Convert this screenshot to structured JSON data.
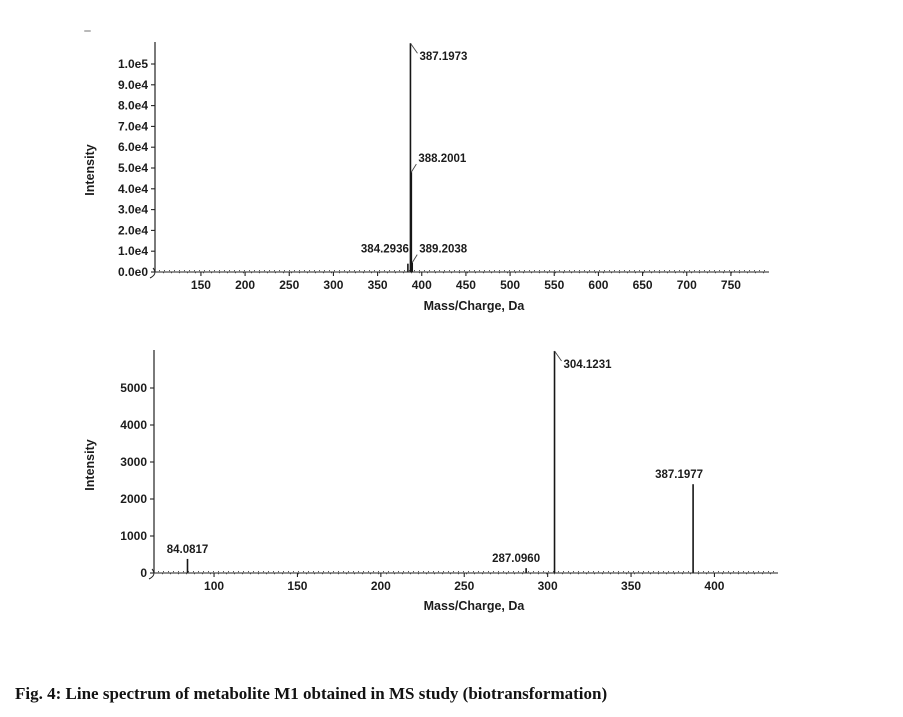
{
  "figure": {
    "caption": "Fig. 4: Line spectrum of metabolite M1 obtained in MS study (biotransformation)"
  },
  "chart_data": [
    {
      "type": "bar",
      "subtype": "mass-spectrum-line",
      "title": "",
      "xlabel": "Mass/Charge, Da",
      "ylabel": "Intensity",
      "xlim": [
        98,
        795
      ],
      "ylim": [
        0,
        110600
      ],
      "grid": false,
      "legend": false,
      "xticks": [
        150,
        200,
        250,
        300,
        350,
        400,
        450,
        500,
        550,
        600,
        650,
        700,
        750
      ],
      "yticks": [
        {
          "value": 0,
          "label": "0.0e0"
        },
        {
          "value": 10000,
          "label": "1.0e4"
        },
        {
          "value": 20000,
          "label": "2.0e4"
        },
        {
          "value": 30000,
          "label": "3.0e4"
        },
        {
          "value": 40000,
          "label": "4.0e4"
        },
        {
          "value": 50000,
          "label": "5.0e4"
        },
        {
          "value": 60000,
          "label": "6.0e4"
        },
        {
          "value": 70000,
          "label": "7.0e4"
        },
        {
          "value": 80000,
          "label": "8.0e4"
        },
        {
          "value": 90000,
          "label": "9.0e4"
        },
        {
          "value": 100000,
          "label": "1.0e5"
        }
      ],
      "peaks": [
        {
          "mz": 384.2936,
          "intensity": 4000,
          "label": "384.2936",
          "label_side": "left"
        },
        {
          "mz": 387.1973,
          "intensity": 110000,
          "label": "387.1973",
          "label_side": "callout-down-right"
        },
        {
          "mz": 388.2001,
          "intensity": 48000,
          "label": "388.2001",
          "label_side": "callout-up-right"
        },
        {
          "mz": 389.2038,
          "intensity": 4500,
          "label": "389.2038",
          "label_side": "callout-up-right"
        }
      ]
    },
    {
      "type": "bar",
      "subtype": "mass-spectrum-line",
      "title": "",
      "xlabel": "Mass/Charge, Da",
      "ylabel": "Intensity",
      "xlim": [
        64,
        440
      ],
      "ylim": [
        0,
        6100
      ],
      "grid": false,
      "legend": false,
      "xticks": [
        100,
        150,
        200,
        250,
        300,
        350,
        400
      ],
      "yticks": [
        {
          "value": 0,
          "label": "0"
        },
        {
          "value": 1000,
          "label": "1000"
        },
        {
          "value": 2000,
          "label": "2000"
        },
        {
          "value": 3000,
          "label": "3000"
        },
        {
          "value": 4000,
          "label": "4000"
        },
        {
          "value": 5000,
          "label": "5000"
        }
      ],
      "peaks": [
        {
          "mz": 84.0817,
          "intensity": 380,
          "label": "84.0817",
          "label_side": "above"
        },
        {
          "mz": 287.096,
          "intensity": 130,
          "label": "287.0960",
          "label_side": "above",
          "label_dx": -10
        },
        {
          "mz": 304.1231,
          "intensity": 6000,
          "label": "304.1231",
          "label_side": "callout-down-right"
        },
        {
          "mz": 387.1977,
          "intensity": 2400,
          "label": "387.1977",
          "label_side": "above",
          "label_dx": -14
        }
      ]
    }
  ]
}
